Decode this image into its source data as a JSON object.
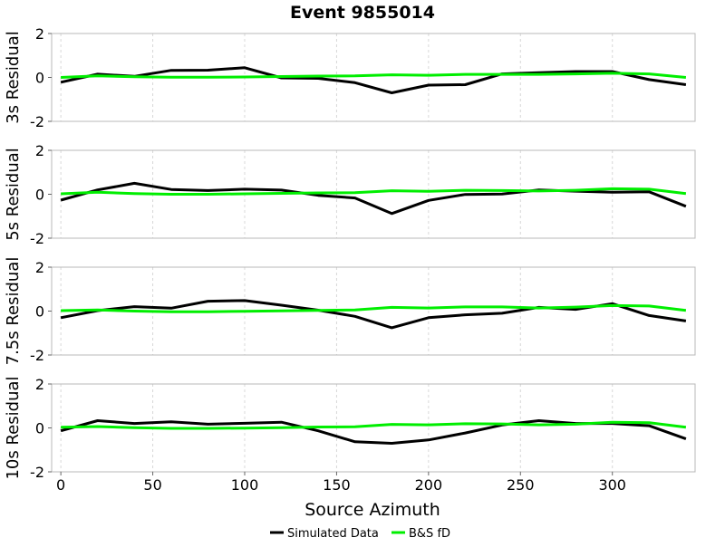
{
  "figure": {
    "title": "Event 9855014",
    "xlabel": "Source Azimuth"
  },
  "legend": [
    {
      "label": "Simulated Data",
      "color": "#000000"
    },
    {
      "label": "B&S fD",
      "color": "#00ee00"
    }
  ],
  "chart_data": [
    {
      "type": "line",
      "ylabel": "3s Residual",
      "xlim": [
        -5,
        345
      ],
      "ylim": [
        -2,
        2
      ],
      "xticks": [
        0,
        50,
        100,
        150,
        200,
        250,
        300
      ],
      "yticks": [
        -2,
        0,
        2
      ],
      "grid": "vertical-dashed",
      "x": [
        0,
        20,
        40,
        60,
        80,
        100,
        120,
        140,
        160,
        180,
        200,
        220,
        240,
        260,
        280,
        300,
        320,
        340
      ],
      "series": [
        {
          "name": "Simulated Data",
          "color": "#000000",
          "values": [
            -0.22,
            0.15,
            0.05,
            0.32,
            0.33,
            0.44,
            -0.02,
            -0.04,
            -0.24,
            -0.7,
            -0.35,
            -0.33,
            0.16,
            0.22,
            0.27,
            0.27,
            -0.1,
            -0.33
          ]
        },
        {
          "name": "B&S fD",
          "color": "#00ee00",
          "values": [
            0.0,
            0.07,
            0.03,
            0.01,
            0.01,
            0.02,
            0.04,
            0.06,
            0.07,
            0.12,
            0.1,
            0.14,
            0.14,
            0.14,
            0.16,
            0.19,
            0.16,
            0.0
          ]
        }
      ]
    },
    {
      "type": "line",
      "ylabel": "5s Residual",
      "xlim": [
        -5,
        345
      ],
      "ylim": [
        -2,
        2
      ],
      "xticks": [
        0,
        50,
        100,
        150,
        200,
        250,
        300
      ],
      "yticks": [
        -2,
        0,
        2
      ],
      "grid": "vertical-dashed",
      "x": [
        0,
        20,
        40,
        60,
        80,
        100,
        120,
        140,
        160,
        180,
        200,
        220,
        240,
        260,
        280,
        300,
        320,
        340
      ],
      "series": [
        {
          "name": "Simulated Data",
          "color": "#000000",
          "values": [
            -0.27,
            0.2,
            0.5,
            0.22,
            0.17,
            0.23,
            0.19,
            -0.05,
            -0.17,
            -0.88,
            -0.28,
            -0.01,
            0.01,
            0.2,
            0.14,
            0.09,
            0.11,
            -0.55
          ]
        },
        {
          "name": "B&S fD",
          "color": "#00ee00",
          "values": [
            0.02,
            0.09,
            0.03,
            0.0,
            0.0,
            0.02,
            0.04,
            0.06,
            0.07,
            0.16,
            0.13,
            0.18,
            0.17,
            0.15,
            0.18,
            0.25,
            0.23,
            0.03
          ]
        }
      ]
    },
    {
      "type": "line",
      "ylabel": "7.5s Residual",
      "xlim": [
        -5,
        345
      ],
      "ylim": [
        -2,
        2
      ],
      "xticks": [
        0,
        50,
        100,
        150,
        200,
        250,
        300
      ],
      "yticks": [
        -2,
        0,
        2
      ],
      "grid": "vertical-dashed",
      "x": [
        0,
        20,
        40,
        60,
        80,
        100,
        120,
        140,
        160,
        180,
        200,
        220,
        240,
        260,
        280,
        300,
        320,
        340
      ],
      "series": [
        {
          "name": "Simulated Data",
          "color": "#000000",
          "values": [
            -0.3,
            0.02,
            0.2,
            0.13,
            0.45,
            0.48,
            0.27,
            0.04,
            -0.24,
            -0.76,
            -0.3,
            -0.17,
            -0.1,
            0.17,
            0.08,
            0.34,
            -0.2,
            -0.45
          ]
        },
        {
          "name": "B&S fD",
          "color": "#00ee00",
          "values": [
            0.02,
            0.05,
            0.0,
            -0.03,
            -0.03,
            -0.01,
            0.01,
            0.03,
            0.05,
            0.17,
            0.14,
            0.19,
            0.19,
            0.14,
            0.18,
            0.25,
            0.23,
            0.03
          ]
        }
      ]
    },
    {
      "type": "line",
      "ylabel": "10s Residual",
      "xlim": [
        -5,
        345
      ],
      "ylim": [
        -2,
        2
      ],
      "xticks": [
        0,
        50,
        100,
        150,
        200,
        250,
        300
      ],
      "yticks": [
        -2,
        0,
        2
      ],
      "grid": "vertical-dashed",
      "x": [
        0,
        20,
        40,
        60,
        80,
        100,
        120,
        140,
        160,
        180,
        200,
        220,
        240,
        260,
        280,
        300,
        320,
        340
      ],
      "series": [
        {
          "name": "Simulated Data",
          "color": "#000000",
          "values": [
            -0.13,
            0.33,
            0.2,
            0.28,
            0.17,
            0.21,
            0.26,
            -0.13,
            -0.63,
            -0.7,
            -0.55,
            -0.23,
            0.13,
            0.33,
            0.2,
            0.2,
            0.1,
            -0.5
          ]
        },
        {
          "name": "B&S fD",
          "color": "#00ee00",
          "values": [
            0.03,
            0.06,
            0.01,
            -0.02,
            -0.02,
            -0.01,
            0.01,
            0.04,
            0.05,
            0.16,
            0.14,
            0.19,
            0.18,
            0.14,
            0.17,
            0.26,
            0.24,
            0.03
          ]
        }
      ]
    }
  ]
}
